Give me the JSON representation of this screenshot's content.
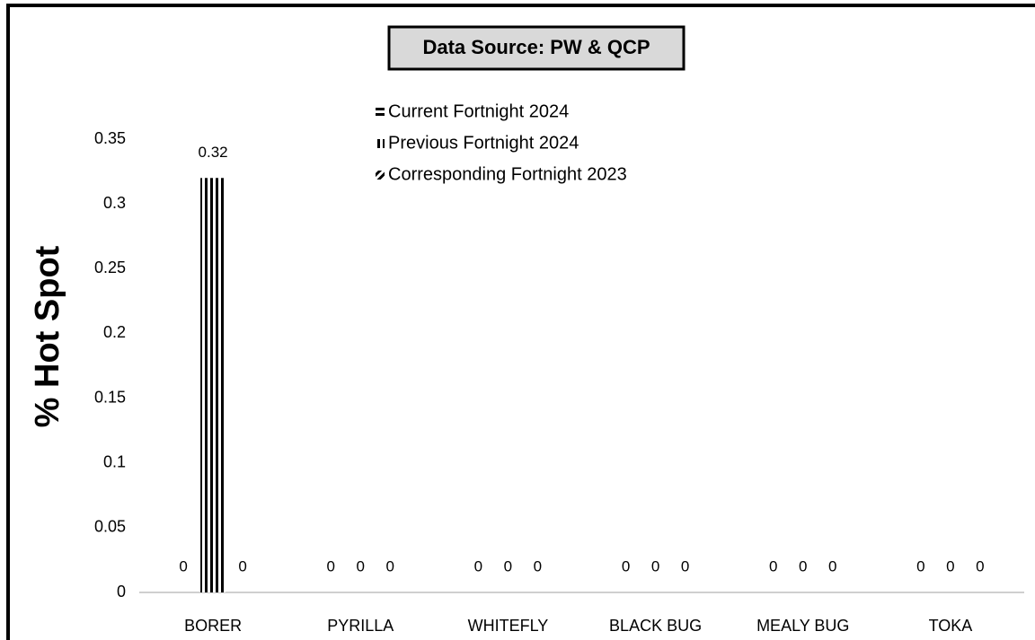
{
  "chart_data": {
    "type": "bar",
    "title": "Data Source: PW & QCP",
    "ylabel": "% Hot Spot",
    "categories": [
      "BORER",
      "PYRILLA",
      "WHITEFLY",
      "BLACK BUG",
      "MEALY BUG",
      "TOKA"
    ],
    "series": [
      {
        "name": "Current Fortnight 2024",
        "color": "#000000",
        "pattern": "horizontal",
        "values": [
          0,
          0,
          0,
          0,
          0,
          0
        ]
      },
      {
        "name": "Previous Fortnight 2024",
        "color": "#000000",
        "pattern": "vertical",
        "values": [
          0.32,
          0,
          0,
          0,
          0,
          0
        ]
      },
      {
        "name": "Corresponding Fortnight 2023",
        "color": "#000000",
        "pattern": "diagonal",
        "values": [
          0,
          0,
          0,
          0,
          0,
          0
        ]
      }
    ],
    "ylim": [
      0,
      0.35
    ],
    "yticks": [
      0,
      0.05,
      0.1,
      0.15,
      0.2,
      0.25,
      0.3,
      0.35
    ],
    "grid": false,
    "legend": "top"
  }
}
